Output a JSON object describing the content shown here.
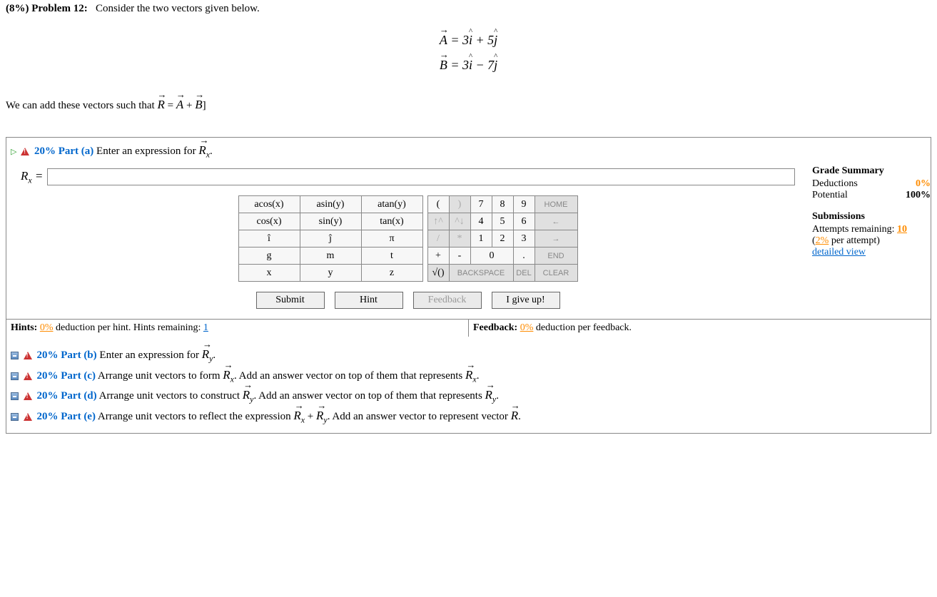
{
  "problem": {
    "weight": "(8%)",
    "number": "Problem 12:",
    "intro": "Consider the two vectors given below.",
    "eq_A_lhs": "A",
    "eq_A_rhs_1": " = 3",
    "eq_A_rhs_2": " + 5",
    "eq_B_lhs": "B",
    "eq_B_rhs_1": " = 3",
    "eq_B_rhs_2": " − 7",
    "i_hat": "i",
    "j_hat": "j",
    "statement_pre": "We can add these vectors such that ",
    "stmt_R": "R",
    "stmt_eq": " = ",
    "stmt_A": "A",
    "stmt_plus": " + ",
    "stmt_B": "B",
    "stmt_end": "]"
  },
  "part_a": {
    "pct": "20%",
    "title": "Part (a)",
    "prompt_pre": "  Enter an expression for ",
    "prompt_vec": "R",
    "prompt_sub": "x",
    "prompt_post": ".",
    "answer_label_main": "R",
    "answer_label_sub": "x",
    "answer_label_eq": " = ",
    "answer_value": ""
  },
  "func_pad": {
    "r1c1": "acos(x)",
    "r1c2": "asin(y)",
    "r1c3": "atan(y)",
    "r2c1": "cos(x)",
    "r2c2": "sin(y)",
    "r2c3": "tan(x)",
    "r3c1": "î",
    "r3c2": "ĵ",
    "r3c3": "π",
    "r4c1": "g",
    "r4c2": "m",
    "r4c3": "t",
    "r5c1": "x",
    "r5c2": "y",
    "r5c3": "z"
  },
  "num_pad": {
    "r1": [
      "(",
      ")",
      "7",
      "8",
      "9",
      "HOME"
    ],
    "r2": [
      "↑^",
      "^↓",
      "4",
      "5",
      "6",
      "←"
    ],
    "r3": [
      "/",
      "*",
      "1",
      "2",
      "3",
      "→"
    ],
    "r4": [
      "+",
      "-",
      "0",
      ".",
      "END"
    ],
    "r5": [
      "√()",
      "BACKSPACE",
      "DEL",
      "CLEAR"
    ]
  },
  "actions": {
    "submit": "Submit",
    "hint": "Hint",
    "feedback": "Feedback",
    "giveup": "I give up!"
  },
  "grade": {
    "title": "Grade Summary",
    "deductions_label": "Deductions",
    "deductions_value": "0%",
    "potential_label": "Potential",
    "potential_value": "100%",
    "subs_title": "Submissions",
    "attempts_pre": "Attempts remaining: ",
    "attempts_n": "10",
    "per_attempt_pre": "(",
    "per_attempt_pct": "2%",
    "per_attempt_post": " per attempt)",
    "detailed": "detailed view"
  },
  "hints": {
    "left_pre": "Hints: ",
    "left_pct": "0%",
    "left_mid": " deduction per hint. Hints remaining: ",
    "left_n": "1",
    "right_pre": "Feedback: ",
    "right_pct": "0%",
    "right_post": " deduction per feedback."
  },
  "parts": {
    "b": {
      "pct": "20%",
      "title": "Part (b)",
      "text_pre": "  Enter an expression for ",
      "vec": "R",
      "sub": "y",
      "text_post": "."
    },
    "c": {
      "pct": "20%",
      "title": "Part (c)",
      "text_pre": "  Arrange unit vectors to form ",
      "vec1": "R",
      "sub1": "x",
      "mid": ". Add an answer vector on top of them that represents ",
      "vec2": "R",
      "sub2": "x",
      "post": "."
    },
    "d": {
      "pct": "20%",
      "title": "Part (d)",
      "text_pre": "  Arrange unit vectors to construct ",
      "vec1": "R",
      "sub1": "y",
      "mid": ". Add an answer vector on top of them that represents ",
      "vec2": "R",
      "sub2": "y",
      "post": "."
    },
    "e": {
      "pct": "20%",
      "title": "Part (e)",
      "text_pre": "  Arrange unit vectors to reflect the expression ",
      "vec1": "R",
      "sub1": "x",
      "plus": " + ",
      "vec2": "R",
      "sub2": "y",
      "mid": ". Add an answer vector to represent vector ",
      "vec3": "R",
      "post": "."
    }
  },
  "colors": {
    "link": "#0066cc",
    "warn": "#cc3333",
    "orange": "#ff8c00"
  }
}
